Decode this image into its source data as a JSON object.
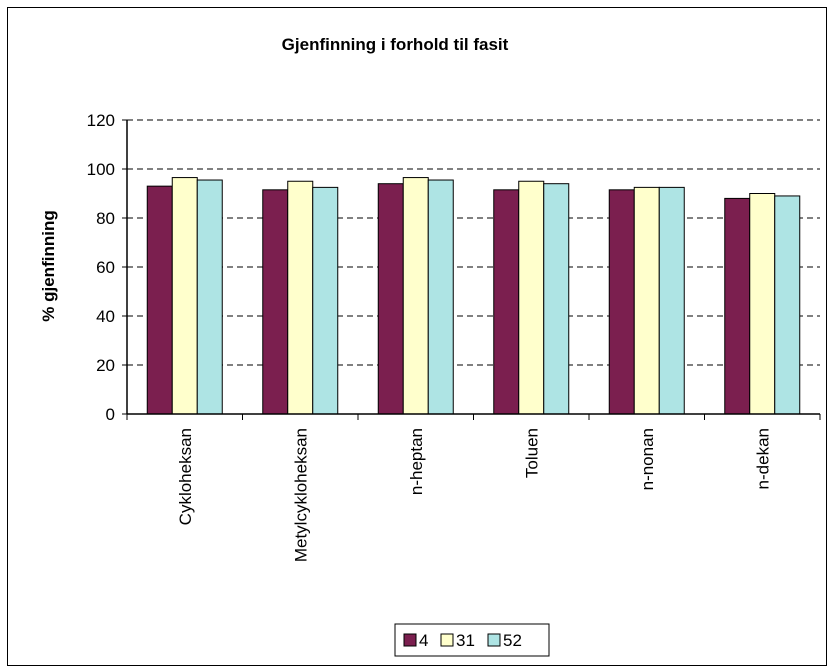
{
  "chart_data": {
    "type": "bar",
    "title": "Gjenfinning i forhold til fasit",
    "xlabel": "",
    "ylabel": "% gjenfinning",
    "ylim": [
      0,
      120
    ],
    "yticks": [
      "0",
      "20",
      "40",
      "60",
      "80",
      "100",
      "120"
    ],
    "grid": true,
    "legend_position": "bottom",
    "categories": [
      "Cykloheksan",
      "Metylcykloheksan",
      "n-heptan",
      "Toluen",
      "n-nonan",
      "n-dekan"
    ],
    "series": [
      {
        "name": "4",
        "color": "#7b1f4f",
        "values": [
          93,
          91.5,
          94,
          91.5,
          91.5,
          88
        ]
      },
      {
        "name": "31",
        "color": "#ffffcc",
        "values": [
          96.5,
          95,
          96.5,
          95,
          92.5,
          90
        ]
      },
      {
        "name": "52",
        "color": "#aee4e4",
        "values": [
          95.5,
          92.5,
          95.5,
          94,
          92.5,
          89
        ]
      }
    ]
  }
}
